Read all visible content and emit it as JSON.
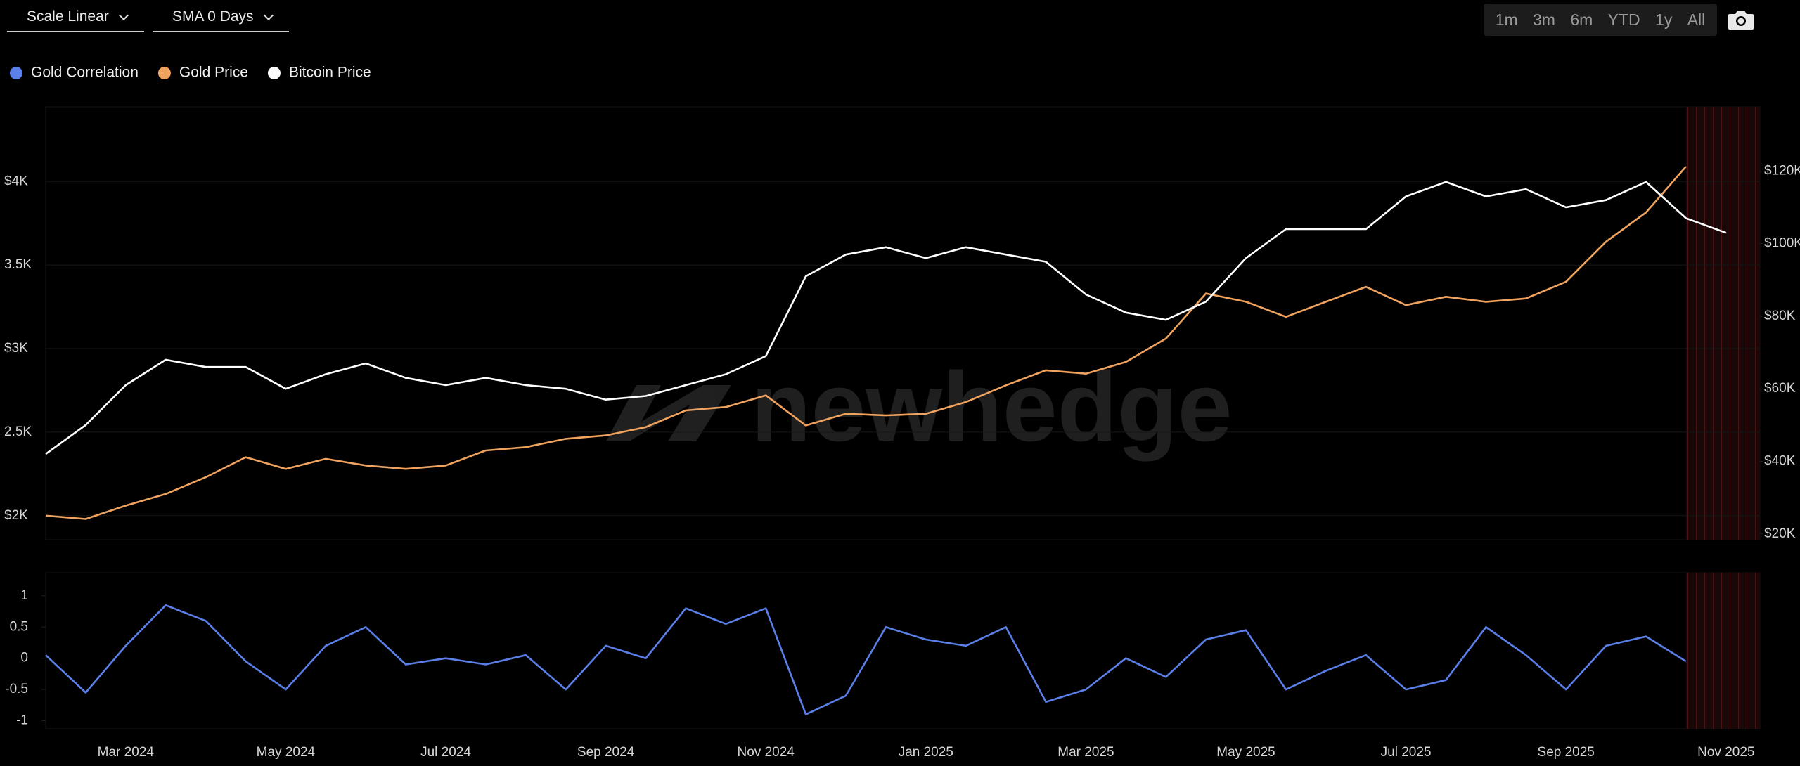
{
  "toolbar": {
    "dropdowns": [
      "Scale Linear",
      "SMA 0 Days"
    ],
    "ranges": [
      "1m",
      "3m",
      "6m",
      "YTD",
      "1y",
      "All"
    ]
  },
  "watermark": "newhedge",
  "chart_data": [
    {
      "type": "line",
      "categories": [
        null,
        null,
        "Mar 2024",
        null,
        null,
        null,
        "May 2024",
        null,
        null,
        null,
        "Jul 2024",
        null,
        null,
        null,
        "Sep 2024",
        null,
        null,
        null,
        "Nov 2024",
        null,
        null,
        null,
        "Jan 2025",
        null,
        null,
        null,
        "Mar 2025",
        null,
        null,
        null,
        "May 2025",
        null,
        null,
        null,
        "Jul 2025",
        null,
        null,
        null,
        "Sep 2025",
        null,
        null,
        null,
        "Nov 2025"
      ],
      "series": [
        {
          "name": "Gold Price",
          "color": "#f0a35e",
          "values": [
            2000,
            1980,
            2060,
            2130,
            2230,
            2350,
            2280,
            2340,
            2300,
            2280,
            2300,
            2390,
            2410,
            2460,
            2480,
            2530,
            2630,
            2650,
            2720,
            2540,
            2610,
            2600,
            2610,
            2680,
            2780,
            2870,
            2850,
            2920,
            3060,
            3330,
            3280,
            3190,
            3280,
            3370,
            3260,
            3310,
            3280,
            3300,
            3400,
            3640,
            3815,
            4090,
            null
          ]
        },
        {
          "name": "Bitcoin Price",
          "color": "#ffffff",
          "axis": "y2",
          "values": [
            42000,
            50000,
            61000,
            68000,
            66000,
            66000,
            60000,
            64000,
            67000,
            63000,
            61000,
            63000,
            61000,
            60000,
            57000,
            58000,
            61000,
            64000,
            69000,
            91000,
            97000,
            99000,
            96000,
            99000,
            97000,
            95000,
            86000,
            81000,
            79000,
            84000,
            96000,
            104000,
            104000,
            104000,
            113000,
            117000,
            113000,
            115000,
            110000,
            112000,
            117000,
            107000,
            103000
          ]
        }
      ],
      "ylim": [
        1856,
        4447
      ],
      "yticks": [
        {
          "value": 2000,
          "label": "$2K"
        },
        {
          "value": 2500,
          "label": "2.5K"
        },
        {
          "value": 3000,
          "label": "$3K"
        },
        {
          "value": 3500,
          "label": "3.5K"
        },
        {
          "value": 4000,
          "label": "$4K"
        }
      ],
      "y2lim": [
        18400,
        137700
      ],
      "y2ticks": [
        {
          "value": 20000,
          "label": "$20K"
        },
        {
          "value": 40000,
          "label": "$40K"
        },
        {
          "value": 60000,
          "label": "$60K"
        },
        {
          "value": 80000,
          "label": "$80K"
        },
        {
          "value": 100000,
          "label": "$100K"
        },
        {
          "value": 120000,
          "label": "$120K"
        }
      ],
      "grid": true
    },
    {
      "type": "line",
      "series": [
        {
          "name": "Gold Correlation",
          "color": "#5b7fe8",
          "values": [
            0.05,
            -0.55,
            0.2,
            0.85,
            0.6,
            -0.05,
            -0.5,
            0.2,
            0.5,
            -0.1,
            0.0,
            -0.1,
            0.05,
            -0.5,
            0.2,
            0.0,
            0.8,
            0.55,
            0.8,
            -0.9,
            -0.6,
            0.5,
            0.3,
            0.2,
            0.5,
            -0.7,
            -0.5,
            0.0,
            -0.3,
            0.3,
            0.45,
            -0.5,
            -0.2,
            0.05,
            -0.5,
            -0.35,
            0.5,
            0.05,
            -0.5,
            0.2,
            0.35,
            -0.05,
            null
          ]
        }
      ],
      "ylim": [
        -1.13,
        1.37
      ],
      "yticks": [
        -1,
        -0.5,
        0,
        0.5,
        1
      ],
      "grid": false
    }
  ]
}
